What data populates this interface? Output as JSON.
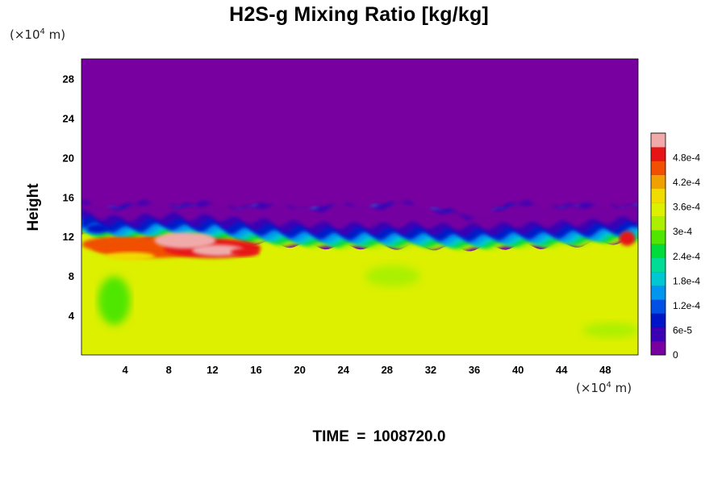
{
  "chart_data": {
    "type": "heatmap",
    "title": "H2S-g Mixing Ratio [kg/kg]",
    "xlabel": "",
    "ylabel": "Height",
    "x_unit": "(×10",
    "x_unit_exp": "4",
    "x_unit_end": " m)",
    "y_unit": "(×10",
    "y_unit_exp": "4",
    "y_unit_end": " m)",
    "xlim": [
      0,
      51
    ],
    "ylim": [
      0,
      30
    ],
    "x_ticks": [
      "4",
      "8",
      "12",
      "16",
      "20",
      "24",
      "28",
      "32",
      "36",
      "40",
      "44",
      "48"
    ],
    "x_tick_values": [
      4,
      8,
      12,
      16,
      20,
      24,
      28,
      32,
      36,
      40,
      44,
      48
    ],
    "y_ticks": [
      "4",
      "8",
      "12",
      "16",
      "20",
      "24",
      "28"
    ],
    "y_tick_values": [
      4,
      8,
      12,
      16,
      20,
      24,
      28
    ],
    "colorbar": {
      "labels": [
        "0",
        "6e-5",
        "1.2e-4",
        "1.8e-4",
        "2.4e-4",
        "3e-4",
        "3.6e-4",
        "4.2e-4",
        "4.8e-4"
      ],
      "values": [
        0,
        6e-05,
        0.00012,
        0.00018,
        0.00024,
        0.0003,
        0.00036,
        0.00042,
        0.00048
      ],
      "max": 0.00054,
      "palette": [
        "#7800a0",
        "#3c00b4",
        "#0014c8",
        "#0050e6",
        "#0096f0",
        "#00c8d2",
        "#00dc96",
        "#00dc3c",
        "#50e600",
        "#aaf000",
        "#dcf000",
        "#f0dc00",
        "#f0a000",
        "#f05000",
        "#e61414",
        "#f0aaaa"
      ]
    },
    "fields": {
      "upper_value": 0.0,
      "lower_value": 0.00035,
      "interface_height_profile": {
        "x": [
          0,
          2,
          4,
          6,
          8,
          10,
          12,
          14,
          16,
          18,
          20,
          22,
          24,
          26,
          28,
          30,
          32,
          34,
          35.5,
          37,
          38,
          40,
          42,
          44,
          46,
          48,
          51
        ],
        "top": [
          15,
          15,
          14.8,
          15,
          15.1,
          14.9,
          15,
          14.8,
          14.9,
          14.7,
          14.8,
          14.6,
          14.8,
          15,
          14.9,
          15,
          14.8,
          14.2,
          13.3,
          14.2,
          14.8,
          15,
          14.9,
          15,
          14.8,
          14.9,
          15
        ],
        "bottom": [
          13,
          12.6,
          12.4,
          12.6,
          12.8,
          12.5,
          12.6,
          12.3,
          12.2,
          12,
          11.9,
          11.8,
          11.7,
          11.8,
          11.7,
          11.8,
          11.7,
          11.6,
          11.6,
          11.6,
          11.7,
          11.8,
          11.8,
          11.9,
          12,
          12.2,
          12.4
        ]
      }
    }
  },
  "footer": {
    "time_label": "TIME",
    "equals": "=",
    "time_value": "1008720.0"
  }
}
